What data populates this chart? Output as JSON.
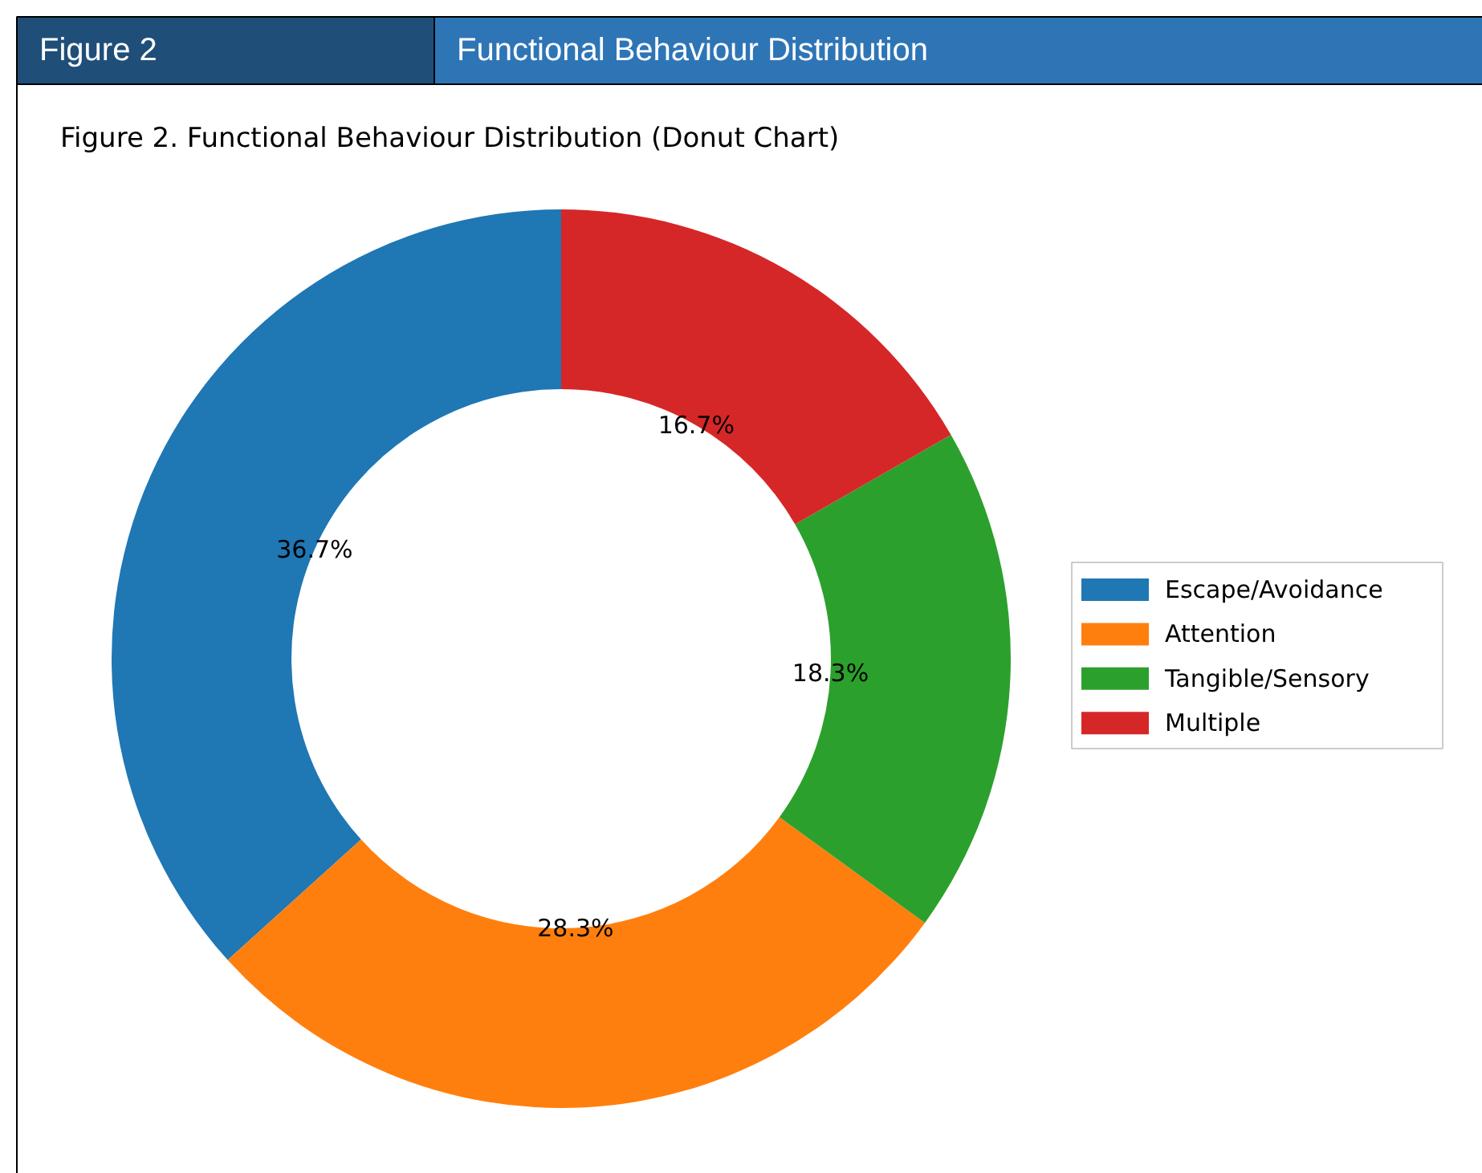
{
  "chart_data": {
    "type": "donut",
    "title": "Figure 2. Functional Behaviour Distribution (Donut Chart)",
    "annotations": [
      "Figure 2",
      "Functional Behaviour Distribution"
    ],
    "categories": [
      "Escape/Avoidance",
      "Attention",
      "Tangible/Sensory",
      "Multiple"
    ],
    "values": [
      36.7,
      28.3,
      18.3,
      16.7
    ],
    "colors": [
      "#1f77b4",
      "#ff7f0e",
      "#2ca02c",
      "#d62728"
    ],
    "value_labels": [
      "36.7%",
      "28.3%",
      "18.3%",
      "16.7%"
    ],
    "legend": "right"
  }
}
